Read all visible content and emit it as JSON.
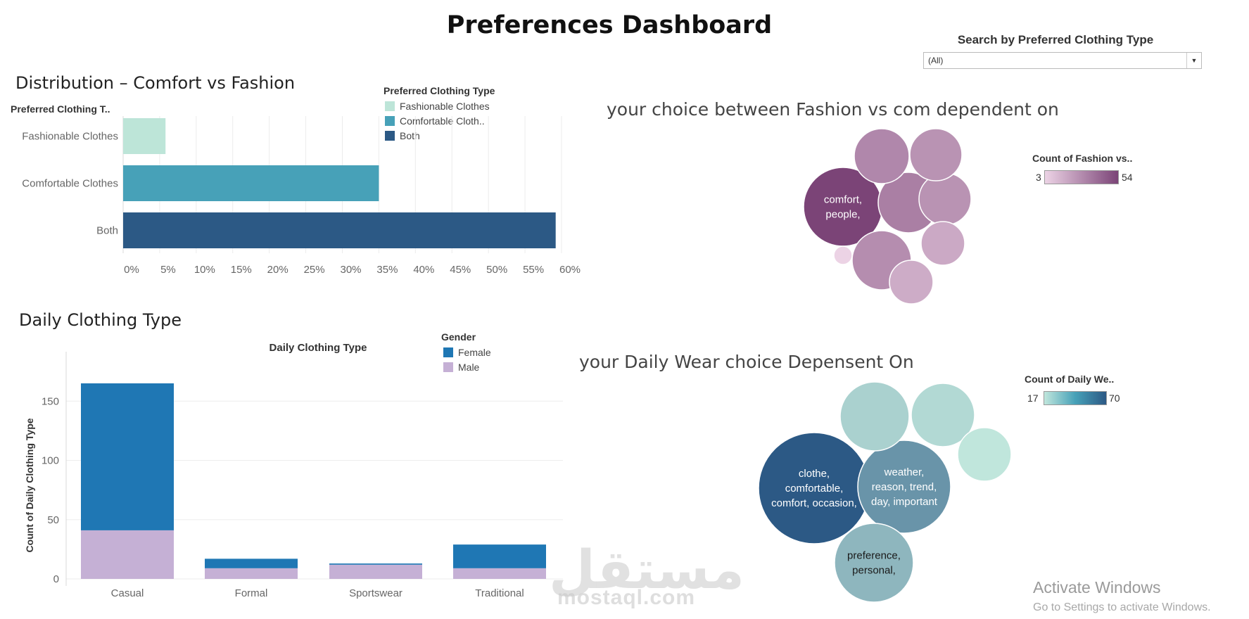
{
  "dashboard": {
    "title": "Preferences Dashboard"
  },
  "filter": {
    "label": "Search by Preferred Clothing Type",
    "value": "(All)"
  },
  "distribution": {
    "title": "Distribution – Comfort vs Fashion",
    "row_header": "Preferred Clothing T..",
    "legend_title": "Preferred Clothing Type",
    "legend": [
      {
        "label": "Fashionable Clothes",
        "color": "#bde5d8"
      },
      {
        "label": "Comfortable Cloth..",
        "color": "#47a1b8"
      },
      {
        "label": "Both",
        "color": "#2c5985"
      }
    ]
  },
  "daily": {
    "title": "Daily Clothing Type",
    "legend_title": "Gender",
    "legend": [
      {
        "label": "Female",
        "color": "#1f77b4"
      },
      {
        "label": "Male",
        "color": "#c5b0d5"
      }
    ]
  },
  "fashion_bubbles": {
    "title": "your choice between Fashion vs com dependent on",
    "legend_title": "Count of Fashion vs..",
    "min_label": "3",
    "max_label": "54"
  },
  "daily_bubbles": {
    "title": "your Daily Wear  choice Depensent On",
    "legend_title": "Count of Daily We..",
    "min_label": "17",
    "max_label": "70"
  },
  "overlay": {
    "logo_text": "مستقل",
    "logo_sub": "mostaql.com",
    "activate_title": "Activate Windows",
    "activate_sub": "Go to Settings to activate Windows."
  },
  "chart_data": [
    {
      "type": "bar",
      "orientation": "horizontal",
      "categories": [
        "Fashionable Clothes",
        "Comfortable Clothes",
        "Both"
      ],
      "values": [
        5.8,
        35.0,
        59.2
      ],
      "xlabel": "",
      "ylabel": "Preferred Clothing T..",
      "xlim": [
        0,
        60
      ],
      "x_tick_labels": [
        "0%",
        "5%",
        "10%",
        "15%",
        "20%",
        "25%",
        "30%",
        "35%",
        "40%",
        "45%",
        "50%",
        "55%",
        "60%"
      ],
      "colors": [
        "#bde5d8",
        "#47a1b8",
        "#2c5985"
      ],
      "grid": true,
      "legend_position": "top-right"
    },
    {
      "type": "bar",
      "stacked": true,
      "title": "Daily Clothing Type",
      "categories": [
        "Casual",
        "Formal",
        "Sportswear",
        "Traditional"
      ],
      "series": [
        {
          "name": "Male",
          "values": [
            41,
            9,
            12,
            9
          ],
          "color": "#c5b0d5"
        },
        {
          "name": "Female",
          "values": [
            124,
            8,
            1,
            20
          ],
          "color": "#1f77b4"
        }
      ],
      "ylabel": "Count of Daily Clothing Type",
      "ylim": [
        0,
        170
      ],
      "y_ticks": [
        0,
        50,
        100,
        150
      ],
      "grid": true,
      "legend_position": "top-right"
    },
    {
      "type": "bubble",
      "title": "your choice between Fashion vs com dependent on",
      "bubbles": [
        {
          "label": "comfort, people,",
          "value": 54
        },
        {
          "label": "",
          "value": 33
        },
        {
          "label": "",
          "value": 30
        },
        {
          "label": "",
          "value": 28
        },
        {
          "label": "",
          "value": 26
        },
        {
          "label": "",
          "value": 26
        },
        {
          "label": "",
          "value": 18
        },
        {
          "label": "",
          "value": 17
        },
        {
          "label": "",
          "value": 3
        }
      ],
      "color_scale": [
        "#ecd3e5",
        "#7b4477"
      ],
      "value_range": [
        3,
        54
      ]
    },
    {
      "type": "bubble",
      "title": "your Daily Wear  choice Depensent On",
      "bubbles": [
        {
          "label": "clothe, comfortable, comfort, occasion,",
          "value": 70
        },
        {
          "label": "weather, reason, trend, day, important",
          "value": 48
        },
        {
          "label": "preference, personal,",
          "value": 35
        },
        {
          "label": "",
          "value": 25
        },
        {
          "label": "",
          "value": 22
        },
        {
          "label": "",
          "value": 17
        }
      ],
      "color_scale": [
        "#c0e6dc",
        "#2c5985"
      ],
      "value_range": [
        17,
        70
      ]
    }
  ]
}
